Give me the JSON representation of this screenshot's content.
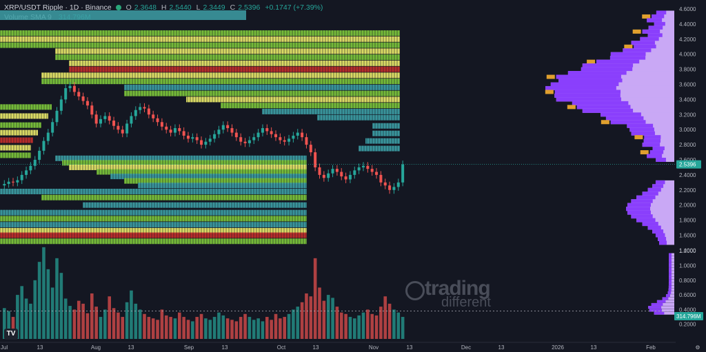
{
  "header": {
    "symbol": "XRP/USDT Ripple · 1D · Binance",
    "open_label": "O",
    "open": "2.3648",
    "high_label": "H",
    "high": "2.5440",
    "low_label": "L",
    "low": "2.3449",
    "close_label": "C",
    "close": "2.5396",
    "change": "+0.1747 (+7.39%)",
    "volume_label": "Volume SMA 9",
    "volume_value": "314.796M"
  },
  "watermark": {
    "line1": "trading",
    "line2": "different"
  },
  "logo": {
    "text": "TV"
  },
  "colors": {
    "background": "#141722",
    "up": "#26a69a",
    "down": "#ef5350",
    "heat_teal": "#3d9fa6",
    "heat_green": "#7ec93c",
    "heat_yellow": "#ecec6a",
    "heat_red": "#c4302b",
    "profile_purple": "#8a3ffc",
    "profile_lilac": "#c9a8f5",
    "profile_orange": "#e0a02e",
    "price_label_bg": "#26a69a"
  },
  "chart_data": {
    "type": "candlestick",
    "title": "XRP/USDT Ripple · 1D · Binance",
    "y_axis": {
      "price_ticks": [
        "4.6000",
        "4.4000",
        "4.2000",
        "4.0000",
        "3.8000",
        "3.6000",
        "3.4000",
        "3.2000",
        "3.0000",
        "2.8000",
        "2.6000",
        "2.4000",
        "2.2000",
        "2.0000",
        "1.8000",
        "1.6000",
        "1.4000"
      ],
      "volume_ticks": [
        "1.2000",
        "1.0000",
        "0.8000",
        "0.6000",
        "0.4000",
        "0.2000"
      ],
      "price_range": [
        1.36,
        4.72
      ],
      "current_price_label": "2.5396",
      "volume_sma_label": "314.796M"
    },
    "x_axis": {
      "ticks": [
        "Jul",
        "13",
        "Aug",
        "13",
        "Sep",
        "13",
        "Oct",
        "13",
        "Nov",
        "13",
        "Dec",
        "13",
        "2026",
        "13",
        "Feb"
      ]
    },
    "close_series": [
      2.28,
      2.31,
      2.3,
      2.33,
      2.4,
      2.46,
      2.52,
      2.6,
      2.72,
      2.85,
      2.96,
      3.1,
      3.25,
      3.4,
      3.55,
      3.58,
      3.5,
      3.44,
      3.38,
      3.32,
      3.2,
      3.08,
      3.14,
      3.18,
      3.12,
      3.05,
      3.0,
      2.95,
      3.08,
      3.18,
      3.26,
      3.3,
      3.28,
      3.2,
      3.15,
      3.1,
      3.04,
      3.0,
      2.96,
      3.02,
      2.98,
      2.92,
      2.88,
      2.9,
      2.86,
      2.8,
      2.84,
      2.88,
      2.94,
      3.0,
      3.06,
      3.02,
      2.96,
      2.9,
      2.84,
      2.82,
      2.86,
      2.9,
      2.96,
      3.02,
      2.98,
      2.94,
      2.9,
      2.86,
      2.84,
      2.88,
      2.92,
      2.96,
      2.9,
      2.8,
      2.7,
      2.5,
      2.4,
      2.36,
      2.42,
      2.48,
      2.44,
      2.38,
      2.34,
      2.4,
      2.46,
      2.5,
      2.52,
      2.48,
      2.44,
      2.4,
      2.3,
      2.26,
      2.2,
      2.24,
      2.3,
      2.54
    ],
    "volume_series": [
      0.42,
      0.38,
      0.3,
      0.6,
      0.72,
      0.55,
      0.48,
      0.8,
      1.05,
      1.25,
      0.95,
      0.7,
      1.1,
      0.9,
      0.55,
      0.45,
      0.4,
      0.52,
      0.48,
      0.35,
      0.62,
      0.44,
      0.3,
      0.4,
      0.58,
      0.42,
      0.36,
      0.3,
      0.5,
      0.66,
      0.48,
      0.4,
      0.34,
      0.3,
      0.28,
      0.26,
      0.4,
      0.32,
      0.3,
      0.28,
      0.36,
      0.3,
      0.26,
      0.24,
      0.3,
      0.34,
      0.28,
      0.26,
      0.3,
      0.36,
      0.32,
      0.28,
      0.26,
      0.24,
      0.3,
      0.34,
      0.3,
      0.26,
      0.28,
      0.24,
      0.3,
      0.26,
      0.34,
      0.28,
      0.3,
      0.34,
      0.4,
      0.44,
      0.5,
      0.62,
      0.58,
      1.1,
      0.7,
      0.52,
      0.6,
      0.56,
      0.44,
      0.36,
      0.34,
      0.3,
      0.28,
      0.32,
      0.36,
      0.4,
      0.34,
      0.32,
      0.44,
      0.58,
      0.48,
      0.4,
      0.36,
      0.3
    ]
  }
}
